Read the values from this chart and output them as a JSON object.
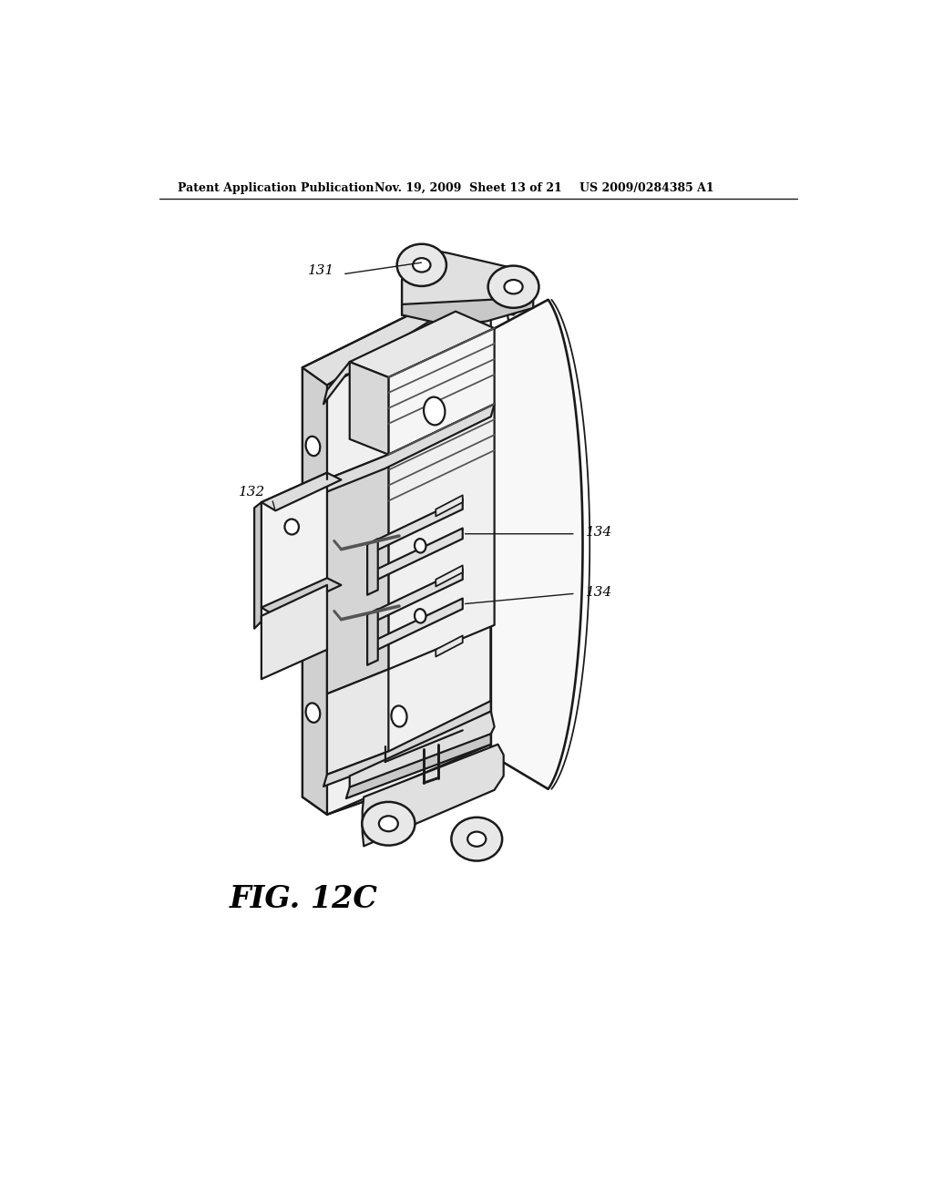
{
  "header_left": "Patent Application Publication",
  "header_mid": "Nov. 19, 2009  Sheet 13 of 21",
  "header_right": "US 2009/0284385 A1",
  "figure_label": "FIG. 12C",
  "ref_131": "131",
  "ref_132": "132",
  "ref_134a": "134",
  "ref_134b": "134",
  "bg_color": "#ffffff",
  "line_color": "#1a1a1a",
  "lw": 1.6,
  "fig_width": 10.24,
  "fig_height": 13.2,
  "dpi": 100
}
